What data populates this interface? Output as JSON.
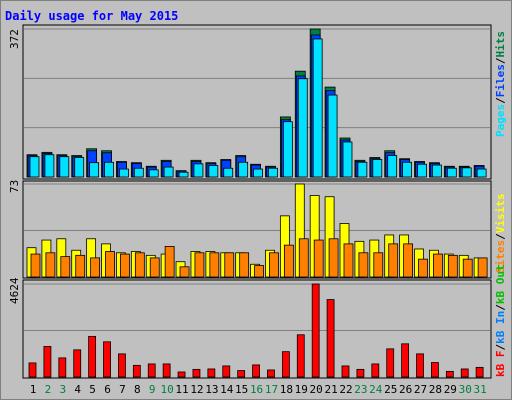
{
  "title": "Daily usage for May 2015",
  "colors": {
    "hits": "#008040",
    "files": "#0040ff",
    "pages": "#00e0ff",
    "visits": "#ffff00",
    "sites": "#ff8000",
    "kb_f": "#ff0000",
    "kb_in": "#0080ff",
    "kb_out": "#00c000",
    "title": "#0000ff",
    "weekend": "#008040",
    "plot_bg": "#c0c0c0"
  },
  "panels": {
    "top": {
      "scale_label": "372",
      "legend": [
        "Pages",
        "Files",
        "Hits"
      ]
    },
    "middle": {
      "scale_label": "73",
      "legend": [
        "Sites",
        "Visits"
      ]
    },
    "bottom": {
      "scale_label": "4624",
      "legend": [
        "kB F",
        "kB In",
        "kB Out"
      ]
    }
  },
  "chart_data": [
    {
      "type": "bar",
      "panel": "top",
      "categories": [
        "1",
        "2",
        "3",
        "4",
        "5",
        "6",
        "7",
        "8",
        "9",
        "10",
        "11",
        "12",
        "13",
        "14",
        "15",
        "16",
        "17",
        "18",
        "19",
        "20",
        "21",
        "22",
        "23",
        "24",
        "25",
        "26",
        "27",
        "28",
        "29",
        "30",
        "31"
      ],
      "weekend_days": [
        "2",
        "3",
        "9",
        "10",
        "16",
        "17",
        "23",
        "24",
        "30",
        "31"
      ],
      "ylim": [
        0,
        372
      ],
      "series": [
        {
          "name": "Hits",
          "values": [
            56,
            62,
            56,
            54,
            71,
            66,
            39,
            36,
            27,
            42,
            16,
            42,
            36,
            44,
            54,
            32,
            27,
            151,
            266,
            372,
            226,
            98,
            42,
            49,
            66,
            46,
            39,
            36,
            27,
            27,
            29
          ]
        },
        {
          "name": "Files",
          "values": [
            54,
            59,
            54,
            51,
            66,
            61,
            37,
            34,
            25,
            39,
            15,
            39,
            34,
            42,
            51,
            30,
            25,
            144,
            254,
            357,
            217,
            93,
            39,
            46,
            61,
            44,
            37,
            34,
            25,
            25,
            27
          ]
        },
        {
          "name": "Pages",
          "values": [
            51,
            56,
            51,
            49,
            36,
            37,
            20,
            22,
            18,
            25,
            12,
            33,
            29,
            22,
            37,
            20,
            22,
            139,
            247,
            347,
            206,
            88,
            37,
            44,
            54,
            37,
            32,
            30,
            22,
            23,
            20
          ]
        }
      ]
    },
    {
      "type": "bar",
      "panel": "middle",
      "categories": [
        "1",
        "2",
        "3",
        "4",
        "5",
        "6",
        "7",
        "8",
        "9",
        "10",
        "11",
        "12",
        "13",
        "14",
        "15",
        "16",
        "17",
        "18",
        "19",
        "20",
        "21",
        "22",
        "23",
        "24",
        "25",
        "26",
        "27",
        "28",
        "29",
        "30",
        "31"
      ],
      "ylim": [
        0,
        73
      ],
      "series": [
        {
          "name": "Visits",
          "values": [
            23,
            29,
            30,
            21,
            30,
            26,
            19,
            20,
            17,
            18,
            12,
            20,
            20,
            19,
            19,
            10,
            21,
            48,
            73,
            64,
            63,
            42,
            28,
            29,
            33,
            33,
            22,
            21,
            18,
            17,
            15
          ]
        },
        {
          "name": "Sites",
          "values": [
            18,
            19,
            16,
            17,
            15,
            20,
            18,
            19,
            15,
            24,
            8,
            19,
            19,
            19,
            19,
            9,
            19,
            25,
            30,
            29,
            30,
            26,
            19,
            19,
            26,
            26,
            14,
            18,
            17,
            14,
            15
          ]
        }
      ]
    },
    {
      "type": "bar",
      "panel": "bottom",
      "categories": [
        "1",
        "2",
        "3",
        "4",
        "5",
        "6",
        "7",
        "8",
        "9",
        "10",
        "11",
        "12",
        "13",
        "14",
        "15",
        "16",
        "17",
        "18",
        "19",
        "20",
        "21",
        "22",
        "23",
        "24",
        "25",
        "26",
        "27",
        "28",
        "29",
        "30",
        "31"
      ],
      "ylim": [
        0,
        4624
      ],
      "series": [
        {
          "name": "kB F",
          "values": [
            700,
            1520,
            950,
            1350,
            2020,
            1750,
            1150,
            580,
            650,
            650,
            250,
            380,
            400,
            550,
            320,
            600,
            350,
            1260,
            2100,
            4624,
            3850,
            550,
            380,
            650,
            1400,
            1650,
            1150,
            720,
            280,
            400,
            480
          ]
        }
      ]
    }
  ]
}
